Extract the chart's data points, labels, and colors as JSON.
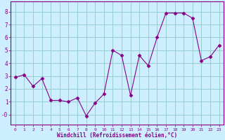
{
  "x": [
    0,
    1,
    2,
    3,
    4,
    5,
    6,
    7,
    8,
    9,
    10,
    11,
    12,
    13,
    14,
    15,
    16,
    17,
    18,
    19,
    20,
    21,
    22,
    23
  ],
  "y": [
    2.9,
    3.1,
    2.2,
    2.8,
    1.1,
    1.1,
    1.0,
    1.3,
    -0.1,
    0.9,
    1.6,
    5.0,
    4.6,
    1.5,
    4.6,
    3.8,
    6.0,
    7.9,
    7.9,
    7.9,
    7.5,
    4.2,
    4.5,
    5.4
  ],
  "line_color": "#880088",
  "marker": "D",
  "marker_size": 2.5,
  "bg_color": "#cceeff",
  "grid_color": "#99cccc",
  "xlabel": "Windchill (Refroidissement éolien,°C)",
  "xlabel_color": "#880088",
  "tick_color": "#880088",
  "spine_color": "#880088",
  "ylim": [
    -0.8,
    8.8
  ],
  "xlim": [
    -0.5,
    23.5
  ],
  "yticks": [
    0,
    1,
    2,
    3,
    4,
    5,
    6,
    7,
    8
  ],
  "xticks": [
    0,
    1,
    2,
    3,
    4,
    5,
    6,
    7,
    8,
    9,
    10,
    11,
    12,
    13,
    14,
    15,
    16,
    17,
    18,
    19,
    20,
    21,
    22,
    23
  ],
  "ytick_labels": [
    "-0",
    "1",
    "2",
    "3",
    "4",
    "5",
    "6",
    "7",
    "8"
  ]
}
